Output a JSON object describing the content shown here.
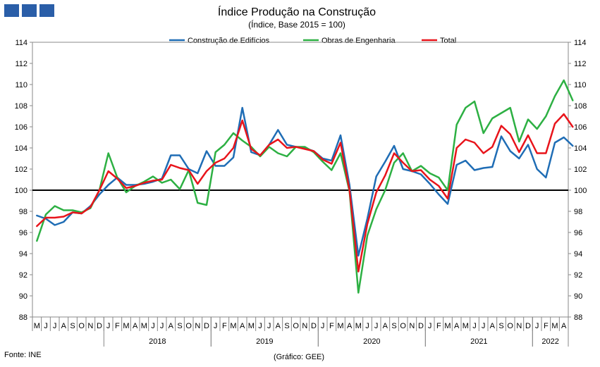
{
  "logo": {
    "name": "three-blue-squares-logo",
    "color": "#2a5ea8"
  },
  "source_note": "Fonte: INE",
  "credit_note": "(Gráfico: GEE)",
  "chart_data": {
    "type": "line",
    "title": "Índice Produção na Construção",
    "subtitle": "(Índice, Base 2015 = 100)",
    "ylim": [
      88,
      114
    ],
    "y_ticks": [
      88,
      90,
      92,
      94,
      96,
      98,
      100,
      102,
      104,
      106,
      108,
      110,
      112,
      114
    ],
    "reference_line": 100,
    "grid": false,
    "legend_position": "top",
    "y_axis_both_sides": true,
    "month_labels": [
      "M",
      "J",
      "J",
      "A",
      "S",
      "O",
      "N",
      "D",
      "J",
      "F",
      "M",
      "A",
      "M",
      "J",
      "J",
      "A",
      "S",
      "O",
      "N",
      "D",
      "J",
      "F",
      "M",
      "A",
      "M",
      "J",
      "J",
      "A",
      "S",
      "O",
      "N",
      "D",
      "J",
      "F",
      "M",
      "A",
      "M",
      "J",
      "J",
      "A",
      "S",
      "O",
      "N",
      "D",
      "J",
      "F",
      "M",
      "A",
      "M",
      "J",
      "J",
      "A",
      "S",
      "O",
      "N",
      "D",
      "J",
      "F",
      "M",
      "A"
    ],
    "year_labels": [
      {
        "label": "2018",
        "start_index": 8,
        "count": 12
      },
      {
        "label": "2019",
        "start_index": 20,
        "count": 12
      },
      {
        "label": "2020",
        "start_index": 32,
        "count": 12
      },
      {
        "label": "2021",
        "start_index": 44,
        "count": 12
      },
      {
        "label": "2022",
        "start_index": 56,
        "count": 4
      }
    ],
    "series": [
      {
        "name": "Construção de Edifícios",
        "color": "#1f6db5",
        "values": [
          97.6,
          97.3,
          96.7,
          97.0,
          97.9,
          97.8,
          98.5,
          99.6,
          100.5,
          101.2,
          100.5,
          100.5,
          100.6,
          100.8,
          101.1,
          103.3,
          103.3,
          102.0,
          101.6,
          103.7,
          102.3,
          102.3,
          103.1,
          107.8,
          103.6,
          103.3,
          104.3,
          105.7,
          104.3,
          104.1,
          104.0,
          103.7,
          103.0,
          102.8,
          105.2,
          100.5,
          93.8,
          97.3,
          101.3,
          102.7,
          104.2,
          102.0,
          101.8,
          101.5,
          100.6,
          99.6,
          98.7,
          102.4,
          102.8,
          101.9,
          102.1,
          102.2,
          105.1,
          103.7,
          103.0,
          104.3,
          102.0,
          101.2,
          104.5,
          105.0,
          104.2
        ]
      },
      {
        "name": "Obras de Engenharia",
        "color": "#2db043",
        "values": [
          95.2,
          97.7,
          98.5,
          98.1,
          98.1,
          97.9,
          98.3,
          100.0,
          103.5,
          101.2,
          99.8,
          100.4,
          100.8,
          101.3,
          100.7,
          101.0,
          100.1,
          101.9,
          98.8,
          98.6,
          103.6,
          104.3,
          105.4,
          104.7,
          104.1,
          103.2,
          104.1,
          103.5,
          103.2,
          104.1,
          104.1,
          103.6,
          102.7,
          101.9,
          103.5,
          99.9,
          90.3,
          95.7,
          98.2,
          100.0,
          102.6,
          103.5,
          101.8,
          102.3,
          101.6,
          101.2,
          100.0,
          106.2,
          107.8,
          108.4,
          105.4,
          106.8,
          107.3,
          107.8,
          104.6,
          106.7,
          105.8,
          107.0,
          108.9,
          110.4,
          108.5
        ]
      },
      {
        "name": "Total",
        "color": "#e8141b",
        "values": [
          96.6,
          97.4,
          97.4,
          97.5,
          97.9,
          97.8,
          98.4,
          100.0,
          101.8,
          101.1,
          100.2,
          100.4,
          100.7,
          100.9,
          101.0,
          102.4,
          102.1,
          101.9,
          100.6,
          101.8,
          102.6,
          103.0,
          104.0,
          106.6,
          103.9,
          103.3,
          104.3,
          104.8,
          104.0,
          104.1,
          103.9,
          103.7,
          102.9,
          102.5,
          104.5,
          100.0,
          92.3,
          96.8,
          99.8,
          101.4,
          103.5,
          102.6,
          101.8,
          101.9,
          101.0,
          100.4,
          99.2,
          104.0,
          104.8,
          104.5,
          103.5,
          104.1,
          106.1,
          105.3,
          103.6,
          105.2,
          103.5,
          103.5,
          106.3,
          107.2,
          106.0
        ]
      }
    ]
  }
}
